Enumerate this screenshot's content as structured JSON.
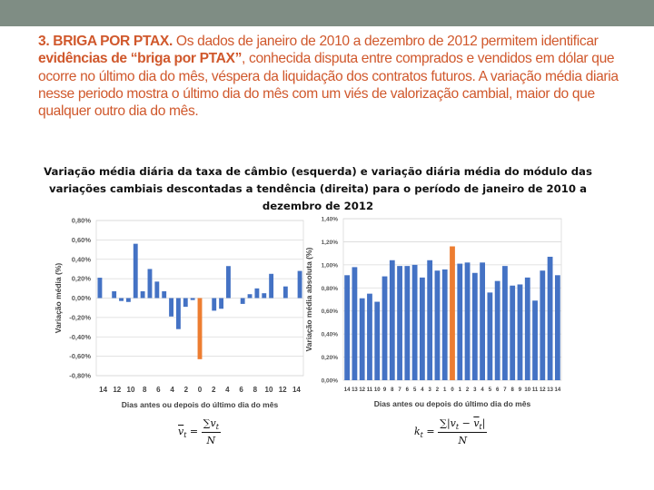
{
  "slide": {
    "headline": {
      "lead": "3. BRIGA POR PTAX.",
      "p1": " Os dados de janeiro de 2010 a dezembro de 2012 permitem identificar ",
      "emph": "evidências de “briga por PTAX”",
      "p2": ", conhecida disputa entre comprados e vendidos em dólar que ocorre no último dia do mês, véspera da liquidação dos contratos futuros. A variação média diaria nesse periodo mostra o último dia do mês com um viés de valorização cambial, maior do que qualquer outro dia do mês."
    },
    "figure_title": "Variação média diária da taxa de câmbio (esquerda) e variação diária média do módulo das variações cambiais descontadas a tendência (direita) para o período de janeiro de 2010 a dezembro de 2012",
    "formula_left": {
      "lhs": "v",
      "lhs_sub": "t",
      "num": "∑v",
      "num_sub": "t",
      "den": "N"
    },
    "formula_right": {
      "lhs": "k",
      "lhs_sub": "t",
      "num": "∑|v",
      "num_sub": "t",
      "num_mid": " − ",
      "num_b": "v",
      "num_b_sub": "t",
      "num_end": "|",
      "den": "N"
    }
  },
  "colors": {
    "bar": "#4472c4",
    "highlight": "#ed7d31",
    "grid": "#d9d9d9",
    "axis_text": "#595959"
  },
  "chart_data": [
    {
      "type": "bar",
      "title": "",
      "xlabel": "Dias antes ou depois do último dia do mês",
      "ylabel": "Variação média (%)",
      "ylim": [
        -0.8,
        0.8
      ],
      "yticks": [
        0.8,
        0.6,
        0.4,
        0.2,
        0.0,
        -0.2,
        -0.4,
        -0.6,
        -0.8
      ],
      "ytick_labels": [
        "0,80%",
        "0,60%",
        "0,40%",
        "0,20%",
        "0,00%",
        "-0,20%",
        "-0,40%",
        "-0,60%",
        "-0,80%"
      ],
      "xtick_labels": [
        "14",
        "12",
        "10",
        "8",
        "6",
        "4",
        "2",
        "0",
        "2",
        "4",
        "6",
        "8",
        "10",
        "12",
        "14"
      ],
      "categories": [
        "-14",
        "-13",
        "-12",
        "-11",
        "-10",
        "-9",
        "-8",
        "-7",
        "-6",
        "-5",
        "-4",
        "-3",
        "-2",
        "-1",
        "0",
        "1",
        "2",
        "3",
        "4",
        "5",
        "6",
        "7",
        "8",
        "9",
        "10",
        "11",
        "12",
        "13",
        "14"
      ],
      "values": [
        0.21,
        0.0,
        0.07,
        -0.03,
        -0.04,
        0.56,
        0.07,
        0.3,
        0.17,
        0.07,
        -0.19,
        -0.32,
        -0.09,
        -0.02,
        -0.63,
        0.0,
        -0.13,
        -0.11,
        0.33,
        0.0,
        -0.06,
        0.04,
        0.1,
        0.05,
        0.25,
        0.0,
        0.12,
        0.0,
        0.28
      ],
      "highlight_index": 14
    },
    {
      "type": "bar",
      "title": "",
      "xlabel": "Dias antes ou depois do último dia do mês",
      "ylabel": "Variação média absoluta (%)",
      "ylim": [
        0.0,
        1.4
      ],
      "yticks": [
        1.4,
        1.2,
        1.0,
        0.8,
        0.6,
        0.4,
        0.2,
        0.0
      ],
      "ytick_labels": [
        "1,40%",
        "1,20%",
        "1,00%",
        "0,80%",
        "0,60%",
        "0,40%",
        "0,20%",
        "0,00%"
      ],
      "xtick_labels": [
        "14",
        "13",
        "12",
        "11",
        "10",
        "9",
        "8",
        "7",
        "6",
        "5",
        "4",
        "3",
        "2",
        "1",
        "0",
        "1",
        "2",
        "3",
        "4",
        "5",
        "6",
        "7",
        "8",
        "9",
        "10",
        "11",
        "12",
        "13",
        "14"
      ],
      "categories": [
        "-14",
        "-13",
        "-12",
        "-11",
        "-10",
        "-9",
        "-8",
        "-7",
        "-6",
        "-5",
        "-4",
        "-3",
        "-2",
        "-1",
        "0",
        "1",
        "2",
        "3",
        "4",
        "5",
        "6",
        "7",
        "8",
        "9",
        "10",
        "11",
        "12",
        "13",
        "14"
      ],
      "values": [
        0.91,
        0.98,
        0.71,
        0.75,
        0.68,
        0.9,
        1.04,
        0.99,
        0.99,
        1.0,
        0.89,
        1.04,
        0.95,
        0.96,
        1.16,
        1.01,
        1.02,
        0.93,
        1.02,
        0.76,
        0.86,
        0.99,
        0.82,
        0.83,
        0.89,
        0.69,
        0.95,
        1.07,
        0.91
      ],
      "highlight_index": 14
    }
  ]
}
